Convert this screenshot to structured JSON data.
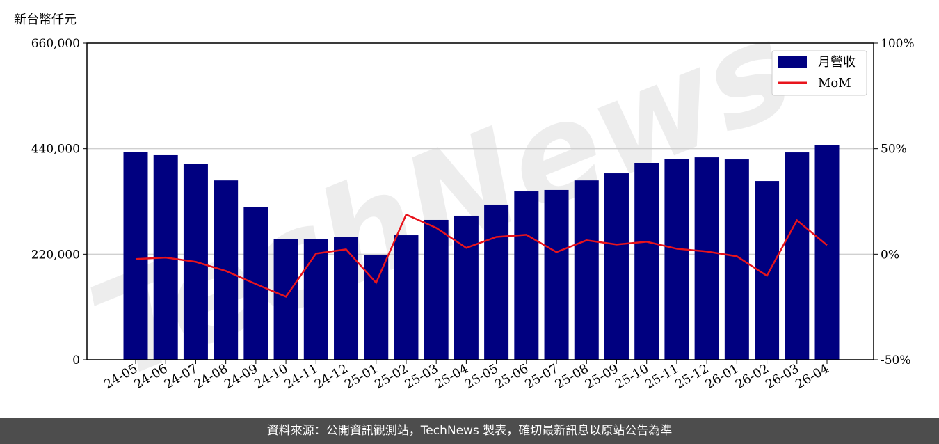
{
  "chart_data": {
    "type": "bar-line",
    "ylabel": "新台幣仟元",
    "watermark": "TechNews",
    "categories": [
      "24-05",
      "24-06",
      "24-07",
      "24-08",
      "24-09",
      "24-10",
      "24-11",
      "24-12",
      "25-01",
      "25-02",
      "25-03",
      "25-04",
      "25-05",
      "25-06",
      "25-07",
      "25-08",
      "25-09",
      "25-10",
      "25-11",
      "25-12",
      "26-01",
      "26-02",
      "26-03",
      "26-04"
    ],
    "series": [
      {
        "name": "月營收",
        "type": "bar",
        "color": "#000080",
        "values": [
          433700,
          426500,
          409000,
          374000,
          317700,
          252400,
          251000,
          255300,
          219000,
          259600,
          291600,
          300300,
          323500,
          351000,
          354000,
          374000,
          388700,
          410500,
          419000,
          422000,
          417700,
          372700,
          432200,
          448200
        ]
      },
      {
        "name": "MoM",
        "type": "line",
        "axis": "y2",
        "color": "#e8141c",
        "values": [
          -2.3,
          -1.6,
          -3.6,
          -7.9,
          -14.1,
          -20.1,
          0.3,
          2.3,
          -13.5,
          18.8,
          12.5,
          3.0,
          8.2,
          9.2,
          1.0,
          6.6,
          4.6,
          5.9,
          2.6,
          1.3,
          -1.0,
          -10.2,
          16.1,
          4.3
        ]
      }
    ],
    "ylim": [
      0,
      660000
    ],
    "yticks": [
      0,
      {
        "value": 220000,
        "label": "220,000"
      },
      {
        "value": 440000,
        "label": "440,000"
      },
      {
        "value": 660000,
        "label": "660,000"
      }
    ],
    "y2lim": [
      -50,
      100
    ],
    "y2ticks": [
      {
        "value": -50,
        "label": "-50%"
      },
      {
        "value": 0,
        "label": "0%"
      },
      {
        "value": 50,
        "label": "50%"
      },
      {
        "value": 100,
        "label": "100%"
      }
    ],
    "grid": true,
    "legend": "upper right"
  },
  "footer": "資料來源：公開資訊觀測站，TechNews 製表，確切最新訊息以原站公告為準"
}
